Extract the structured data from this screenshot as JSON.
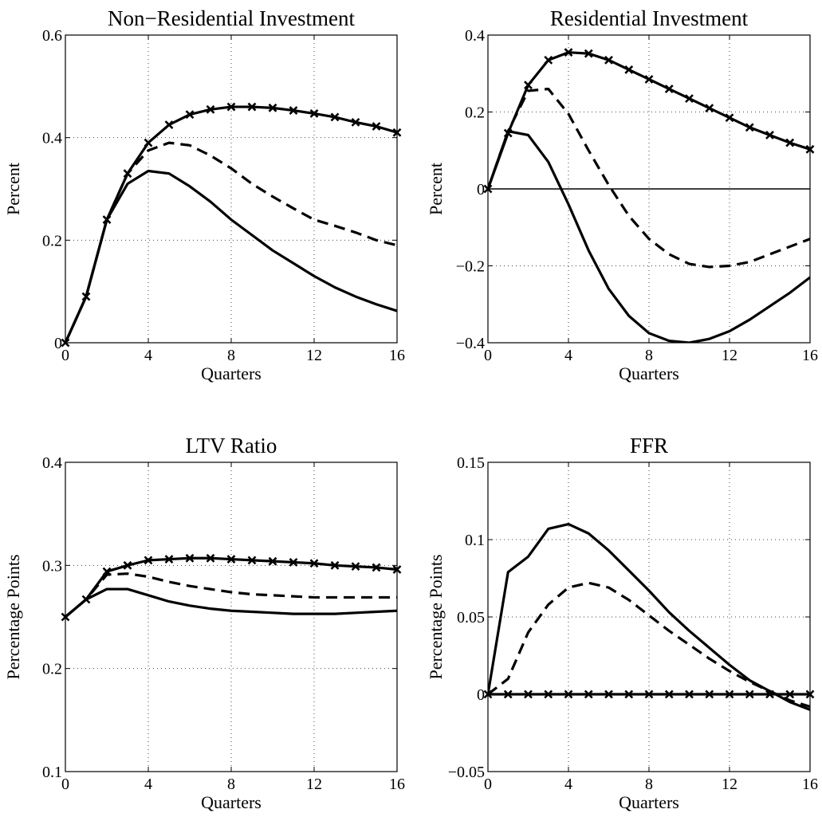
{
  "chart_data": [
    {
      "type": "line",
      "title": "Non−Residential Investment",
      "xlabel": "Quarters",
      "ylabel": "Percent",
      "xlim": [
        0,
        16
      ],
      "ylim": [
        0,
        0.6
      ],
      "xticks": [
        0,
        4,
        8,
        12,
        16
      ],
      "xtick_labels": [
        "0",
        "4",
        "8",
        "12",
        "16"
      ],
      "yticks": [
        0,
        0.2,
        0.4,
        0.6
      ],
      "ytick_labels": [
        "0",
        "0.2",
        "0.4",
        "0.6"
      ],
      "grid": true,
      "x": [
        0,
        1,
        2,
        3,
        4,
        5,
        6,
        7,
        8,
        9,
        10,
        11,
        12,
        13,
        14,
        15,
        16
      ],
      "series": [
        {
          "style": "solid-x",
          "values": [
            0,
            0.09,
            0.24,
            0.33,
            0.39,
            0.425,
            0.445,
            0.455,
            0.46,
            0.46,
            0.458,
            0.453,
            0.447,
            0.44,
            0.43,
            0.422,
            0.41
          ]
        },
        {
          "style": "dashed",
          "values": [
            0,
            0.09,
            0.24,
            0.33,
            0.375,
            0.39,
            0.385,
            0.365,
            0.34,
            0.31,
            0.285,
            0.262,
            0.24,
            0.228,
            0.215,
            0.2,
            0.19
          ]
        },
        {
          "style": "solid",
          "values": [
            0,
            0.09,
            0.24,
            0.31,
            0.335,
            0.33,
            0.305,
            0.275,
            0.24,
            0.21,
            0.18,
            0.155,
            0.13,
            0.108,
            0.09,
            0.075,
            0.062
          ]
        }
      ]
    },
    {
      "type": "line",
      "title": "Residential Investment",
      "xlabel": "Quarters",
      "ylabel": "Percent",
      "xlim": [
        0,
        16
      ],
      "ylim": [
        -0.4,
        0.4
      ],
      "xticks": [
        0,
        4,
        8,
        12,
        16
      ],
      "xtick_labels": [
        "0",
        "4",
        "8",
        "12",
        "16"
      ],
      "yticks": [
        -0.4,
        -0.2,
        0,
        0.2,
        0.4
      ],
      "ytick_labels": [
        "−0.4",
        "−0.2",
        "0",
        "0.2",
        "0.4"
      ],
      "grid": true,
      "zero_line": true,
      "x": [
        0,
        1,
        2,
        3,
        4,
        5,
        6,
        7,
        8,
        9,
        10,
        11,
        12,
        13,
        14,
        15,
        16
      ],
      "series": [
        {
          "style": "solid-x",
          "values": [
            0,
            0.145,
            0.27,
            0.335,
            0.355,
            0.352,
            0.335,
            0.31,
            0.285,
            0.26,
            0.235,
            0.21,
            0.185,
            0.16,
            0.14,
            0.12,
            0.103
          ]
        },
        {
          "style": "dashed",
          "values": [
            0,
            0.15,
            0.255,
            0.26,
            0.195,
            0.1,
            0.01,
            -0.07,
            -0.13,
            -0.17,
            -0.195,
            -0.203,
            -0.2,
            -0.19,
            -0.17,
            -0.15,
            -0.13
          ]
        },
        {
          "style": "solid",
          "values": [
            0,
            0.15,
            0.14,
            0.07,
            -0.04,
            -0.16,
            -0.26,
            -0.33,
            -0.375,
            -0.395,
            -0.4,
            -0.39,
            -0.37,
            -0.34,
            -0.305,
            -0.27,
            -0.23
          ]
        }
      ]
    },
    {
      "type": "line",
      "title": "LTV Ratio",
      "xlabel": "Quarters",
      "ylabel": "Percentage Points",
      "xlim": [
        0,
        16
      ],
      "ylim": [
        0.1,
        0.4
      ],
      "xticks": [
        0,
        4,
        8,
        12,
        16
      ],
      "xtick_labels": [
        "0",
        "4",
        "8",
        "12",
        "16"
      ],
      "yticks": [
        0.1,
        0.2,
        0.3,
        0.4
      ],
      "ytick_labels": [
        "0.1",
        "0.2",
        "0.3",
        "0.4"
      ],
      "grid": true,
      "x": [
        0,
        1,
        2,
        3,
        4,
        5,
        6,
        7,
        8,
        9,
        10,
        11,
        12,
        13,
        14,
        15,
        16
      ],
      "series": [
        {
          "style": "solid-x",
          "values": [
            0.25,
            0.267,
            0.294,
            0.3,
            0.305,
            0.306,
            0.307,
            0.307,
            0.306,
            0.305,
            0.304,
            0.303,
            0.302,
            0.3,
            0.299,
            0.298,
            0.296
          ]
        },
        {
          "style": "dashed",
          "values": [
            0.25,
            0.267,
            0.291,
            0.292,
            0.289,
            0.284,
            0.28,
            0.277,
            0.274,
            0.272,
            0.271,
            0.27,
            0.269,
            0.269,
            0.269,
            0.269,
            0.269
          ]
        },
        {
          "style": "solid",
          "values": [
            0.25,
            0.267,
            0.277,
            0.277,
            0.271,
            0.265,
            0.261,
            0.258,
            0.256,
            0.255,
            0.254,
            0.253,
            0.253,
            0.253,
            0.254,
            0.255,
            0.256
          ]
        }
      ]
    },
    {
      "type": "line",
      "title": "FFR",
      "xlabel": "Quarters",
      "ylabel": "Percentage Points",
      "xlim": [
        0,
        16
      ],
      "ylim": [
        -0.05,
        0.15
      ],
      "xticks": [
        0,
        4,
        8,
        12,
        16
      ],
      "xtick_labels": [
        "0",
        "4",
        "8",
        "12",
        "16"
      ],
      "yticks": [
        -0.05,
        0,
        0.05,
        0.1,
        0.15
      ],
      "ytick_labels": [
        "−0.05",
        "0",
        "0.05",
        "0.1",
        "0.15"
      ],
      "grid": true,
      "x": [
        0,
        1,
        2,
        3,
        4,
        5,
        6,
        7,
        8,
        9,
        10,
        11,
        12,
        13,
        14,
        15,
        16
      ],
      "series": [
        {
          "style": "solid-x",
          "values": [
            0,
            0,
            0,
            0,
            0,
            0,
            0,
            0,
            0,
            0,
            0,
            0,
            0,
            0,
            0,
            0,
            0
          ]
        },
        {
          "style": "dashed",
          "values": [
            0,
            0.01,
            0.04,
            0.058,
            0.069,
            0.072,
            0.069,
            0.061,
            0.051,
            0.041,
            0.032,
            0.023,
            0.015,
            0.008,
            0.002,
            -0.004,
            -0.008
          ]
        },
        {
          "style": "solid",
          "values": [
            0,
            0.079,
            0.089,
            0.107,
            0.11,
            0.104,
            0.093,
            0.08,
            0.067,
            0.053,
            0.041,
            0.03,
            0.019,
            0.009,
            0.002,
            -0.005,
            -0.01
          ]
        }
      ]
    }
  ]
}
